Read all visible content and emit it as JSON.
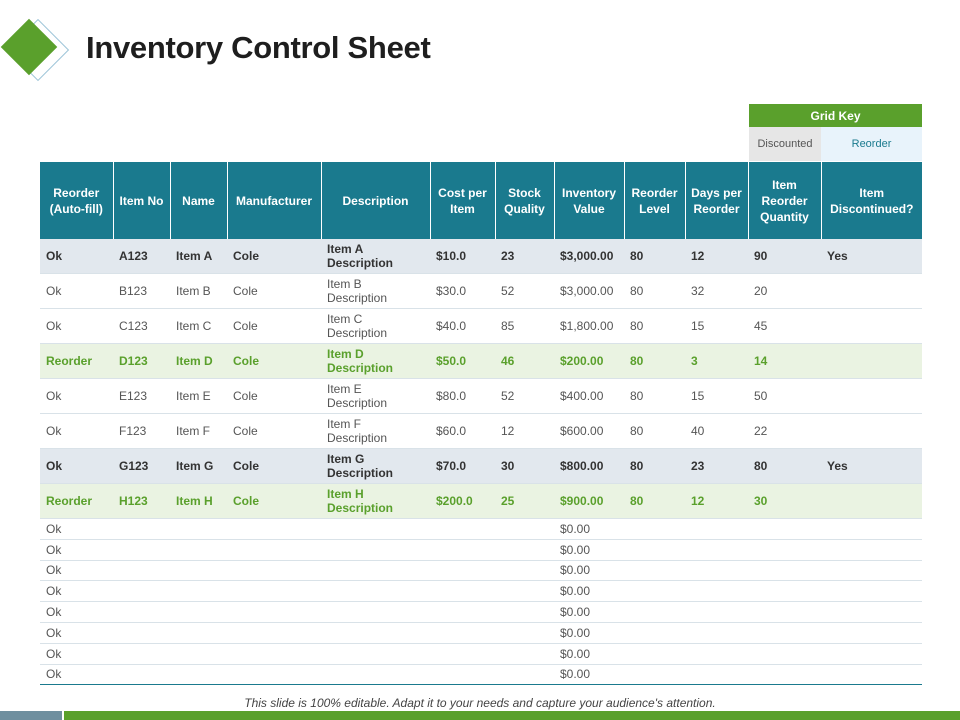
{
  "title": "Inventory Control Sheet",
  "grid_key": {
    "heading": "Grid Key",
    "discounted": "Discounted",
    "reorder": "Reorder"
  },
  "colors": {
    "accent_green": "#5aa02c",
    "header_teal": "#1a7a8e",
    "discontinued_row": "#e2e8ee",
    "reorder_row": "#eaf3e2"
  },
  "table": {
    "headers": [
      "Reorder (Auto-fill)",
      "Item No",
      "Name",
      "Manufacturer",
      "Description",
      "Cost per Item",
      "Stock Quality",
      "Inventory Value",
      "Reorder Level",
      "Days per Reorder",
      "Item Reorder Quantity",
      "Item Discontinued?"
    ],
    "rows": [
      [
        "Ok",
        "A123",
        "Item A",
        "Cole",
        "Item A Description",
        "$10.0",
        "23",
        "$3,000.00",
        "80",
        "12",
        "90",
        "Yes"
      ],
      [
        "Ok",
        "B123",
        "Item B",
        "Cole",
        "Item B Description",
        "$30.0",
        "52",
        "$3,000.00",
        "80",
        "32",
        "20",
        ""
      ],
      [
        "Ok",
        "C123",
        "Item C",
        "Cole",
        "Item C Description",
        "$40.0",
        "85",
        "$1,800.00",
        "80",
        "15",
        "45",
        ""
      ],
      [
        "Reorder",
        "D123",
        "Item D",
        "Cole",
        "Item D Description",
        "$50.0",
        "46",
        "$200.00",
        "80",
        "3",
        "14",
        ""
      ],
      [
        "Ok",
        "E123",
        "Item E",
        "Cole",
        "Item E Description",
        "$80.0",
        "52",
        "$400.00",
        "80",
        "15",
        "50",
        ""
      ],
      [
        "Ok",
        "F123",
        "Item F",
        "Cole",
        "Item F Description",
        "$60.0",
        "12",
        "$600.00",
        "80",
        "40",
        "22",
        ""
      ],
      [
        "Ok",
        "G123",
        "Item G",
        "Cole",
        "Item G Description",
        "$70.0",
        "30",
        "$800.00",
        "80",
        "23",
        "80",
        "Yes"
      ],
      [
        "Reorder",
        "H123",
        "Item H",
        "Cole",
        "Item H Description",
        "$200.0",
        "25",
        "$900.00",
        "80",
        "12",
        "30",
        ""
      ]
    ],
    "empty_rows": [
      {
        "status": "Ok",
        "value": "$0.00"
      },
      {
        "status": "Ok",
        "value": "$0.00"
      },
      {
        "status": "Ok",
        "value": "$0.00"
      },
      {
        "status": "Ok",
        "value": "$0.00"
      },
      {
        "status": "Ok",
        "value": "$0.00"
      },
      {
        "status": "Ok",
        "value": "$0.00"
      },
      {
        "status": "Ok",
        "value": "$0.00"
      },
      {
        "status": "Ok",
        "value": "$0.00"
      }
    ]
  },
  "footer": "This slide is 100% editable. Adapt it to your needs and capture your audience's attention."
}
